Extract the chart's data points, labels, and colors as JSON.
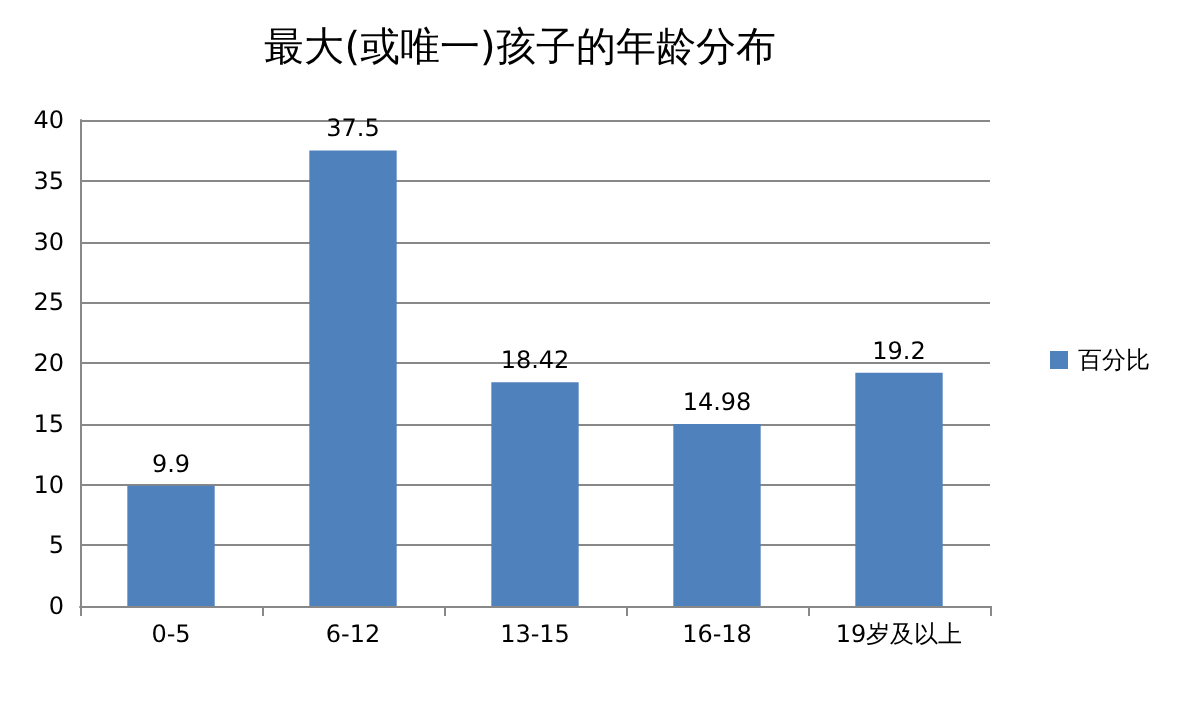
{
  "chart_data": {
    "type": "bar",
    "title": "最大(或唯一)孩子的年龄分布",
    "categories": [
      "0-5",
      "6-12",
      "13-15",
      "16-18",
      "19岁及以上"
    ],
    "series": [
      {
        "name": "百分比",
        "color": "#4f81bd",
        "values": [
          9.9,
          37.5,
          18.42,
          14.98,
          19.2
        ]
      }
    ],
    "ylim": [
      0,
      40
    ],
    "yticks": [
      0,
      5,
      10,
      15,
      20,
      25,
      30,
      35,
      40
    ],
    "grid": "y",
    "legend": "right",
    "data_labels": true
  }
}
